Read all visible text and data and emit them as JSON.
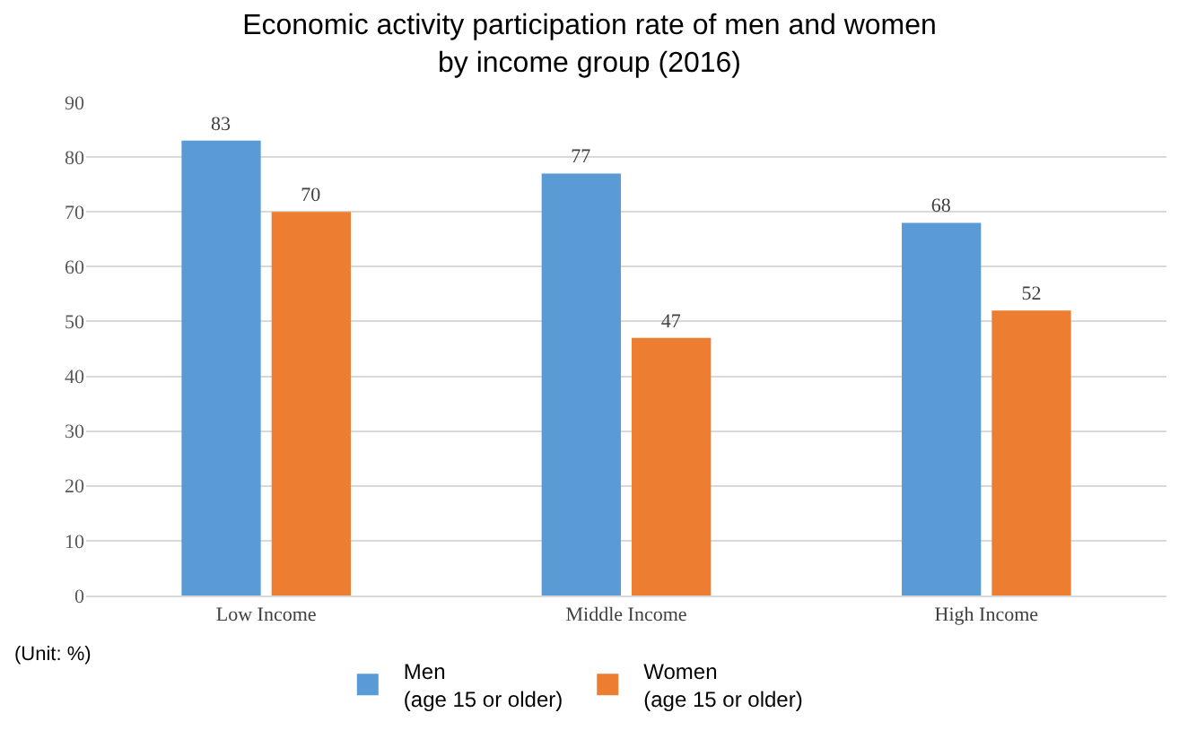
{
  "chart_data": {
    "type": "bar",
    "title": "Economic activity participation rate of men and women\nby income group (2016)",
    "categories": [
      "Low Income",
      "Middle Income",
      "High Income"
    ],
    "series": [
      {
        "name": "Men\n(age 15 or older)",
        "color": "#5b9bd5",
        "values": [
          83,
          77,
          68
        ]
      },
      {
        "name": "Women\n(age 15 or older)",
        "color": "#ed7d31",
        "values": [
          70,
          47,
          52
        ]
      }
    ],
    "ylim": [
      0,
      90
    ],
    "yticks": [
      0,
      10,
      20,
      30,
      40,
      50,
      60,
      70,
      80,
      90
    ],
    "grid": "y",
    "legend": "bottom",
    "data_labels": true,
    "annotations": [
      "(Unit: %)"
    ]
  }
}
